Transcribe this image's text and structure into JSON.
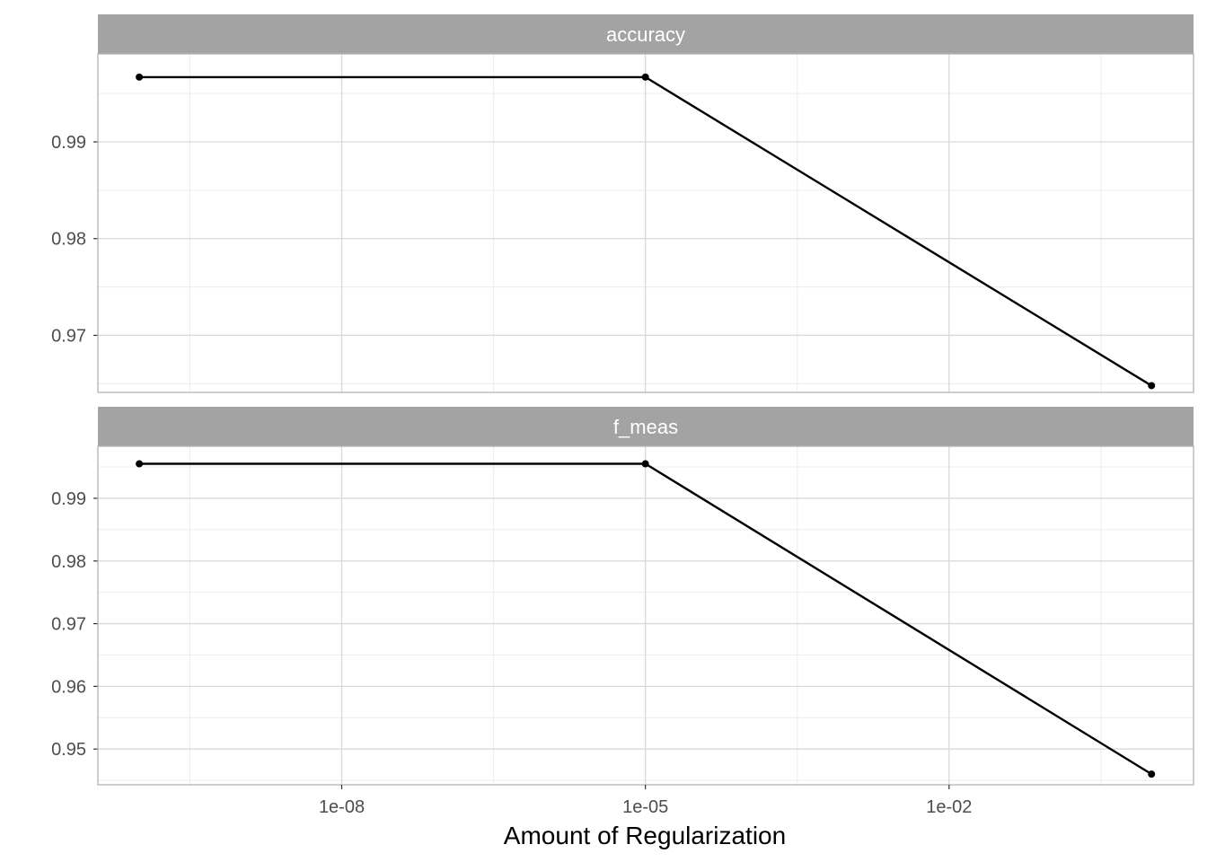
{
  "chart_data": {
    "type": "line",
    "xlabel": "Amount of Regularization",
    "xscale": "log10",
    "x_ticks": [
      {
        "value": 1e-08,
        "label": "1e-08"
      },
      {
        "value": 1e-05,
        "label": "1e-05"
      },
      {
        "value": 0.01,
        "label": "1e-02"
      }
    ],
    "xlim": [
      3.9e-11,
      2.6
    ],
    "grid": true,
    "legend": "none",
    "colors": {
      "line": "#000000",
      "strip": "#a3a3a3",
      "grid_major": "#d9d9d9",
      "grid_minor": "#ececec",
      "frame": "#b3b3b3"
    },
    "panels": [
      {
        "strip_label": "accuracy",
        "ylim": [
          0.9641,
          0.9991
        ],
        "y_ticks": [
          {
            "value": 0.97,
            "label": "0.97"
          },
          {
            "value": 0.98,
            "label": "0.98"
          },
          {
            "value": 0.99,
            "label": "0.99"
          }
        ],
        "points": [
          {
            "x": 1e-10,
            "y": 0.9967
          },
          {
            "x": 1e-05,
            "y": 0.9967
          },
          {
            "x": 1.0,
            "y": 0.9648
          }
        ]
      },
      {
        "strip_label": "f_meas",
        "ylim": [
          0.9443,
          0.9983
        ],
        "y_ticks": [
          {
            "value": 0.95,
            "label": "0.95"
          },
          {
            "value": 0.96,
            "label": "0.96"
          },
          {
            "value": 0.97,
            "label": "0.97"
          },
          {
            "value": 0.98,
            "label": "0.98"
          },
          {
            "value": 0.99,
            "label": "0.99"
          }
        ],
        "points": [
          {
            "x": 1e-10,
            "y": 0.9955
          },
          {
            "x": 1e-05,
            "y": 0.9955
          },
          {
            "x": 1.0,
            "y": 0.946
          }
        ]
      }
    ]
  }
}
